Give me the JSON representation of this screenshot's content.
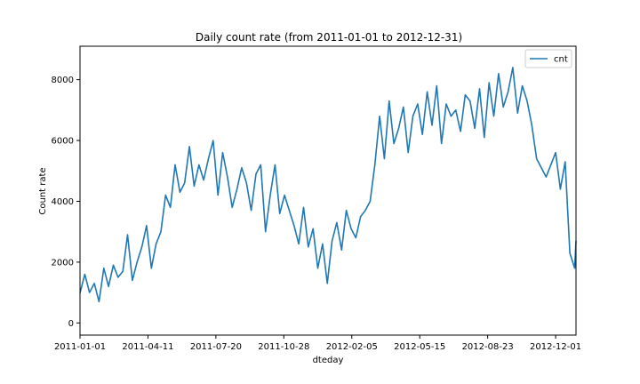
{
  "chart_data": {
    "type": "line",
    "title": "Daily count rate (from 2011-01-01 to 2012-12-31)",
    "xlabel": "dteday",
    "ylabel": "Count rate",
    "x_range": [
      "2011-01-01",
      "2012-12-31"
    ],
    "ylim": [
      -400,
      9100
    ],
    "x_ticks": [
      "2011-01-01",
      "2011-04-11",
      "2011-07-20",
      "2011-10-28",
      "2012-02-05",
      "2012-05-15",
      "2012-08-23",
      "2012-12-01"
    ],
    "y_ticks": [
      0,
      2000,
      4000,
      6000,
      8000
    ],
    "y_tick_labels": [
      "0",
      "2000",
      "4000",
      "6000",
      "8000"
    ],
    "grid": false,
    "legend_position": "top-right",
    "series": [
      {
        "name": "cnt",
        "color": "#1f77b4",
        "x": [
          "2011-01-01",
          "2011-01-08",
          "2011-01-15",
          "2011-01-22",
          "2011-01-29",
          "2011-02-05",
          "2011-02-12",
          "2011-02-19",
          "2011-02-26",
          "2011-03-05",
          "2011-03-12",
          "2011-03-19",
          "2011-03-26",
          "2011-04-02",
          "2011-04-09",
          "2011-04-16",
          "2011-04-23",
          "2011-04-30",
          "2011-05-07",
          "2011-05-14",
          "2011-05-21",
          "2011-05-28",
          "2011-06-04",
          "2011-06-11",
          "2011-06-18",
          "2011-06-25",
          "2011-07-02",
          "2011-07-09",
          "2011-07-16",
          "2011-07-23",
          "2011-07-30",
          "2011-08-06",
          "2011-08-13",
          "2011-08-20",
          "2011-08-27",
          "2011-09-03",
          "2011-09-10",
          "2011-09-17",
          "2011-09-24",
          "2011-10-01",
          "2011-10-08",
          "2011-10-15",
          "2011-10-22",
          "2011-10-29",
          "2011-11-05",
          "2011-11-12",
          "2011-11-19",
          "2011-11-26",
          "2011-12-03",
          "2011-12-10",
          "2011-12-17",
          "2011-12-24",
          "2011-12-31",
          "2012-01-07",
          "2012-01-14",
          "2012-01-21",
          "2012-01-28",
          "2012-02-04",
          "2012-02-11",
          "2012-02-18",
          "2012-02-25",
          "2012-03-03",
          "2012-03-10",
          "2012-03-17",
          "2012-03-24",
          "2012-03-31",
          "2012-04-07",
          "2012-04-14",
          "2012-04-21",
          "2012-04-28",
          "2012-05-05",
          "2012-05-12",
          "2012-05-19",
          "2012-05-26",
          "2012-06-02",
          "2012-06-09",
          "2012-06-16",
          "2012-06-23",
          "2012-06-30",
          "2012-07-07",
          "2012-07-14",
          "2012-07-21",
          "2012-07-28",
          "2012-08-04",
          "2012-08-11",
          "2012-08-18",
          "2012-08-25",
          "2012-09-01",
          "2012-09-08",
          "2012-09-15",
          "2012-09-22",
          "2012-09-29",
          "2012-10-06",
          "2012-10-13",
          "2012-10-20",
          "2012-10-27",
          "2012-11-03",
          "2012-11-10",
          "2012-11-17",
          "2012-11-24",
          "2012-12-01",
          "2012-12-08",
          "2012-12-15",
          "2012-12-22",
          "2012-12-29",
          "2012-12-31"
        ],
        "values": [
          985,
          1600,
          1000,
          1300,
          700,
          1800,
          1200,
          1900,
          1500,
          1700,
          2900,
          1400,
          2000,
          2500,
          3200,
          1800,
          2600,
          3000,
          4200,
          3800,
          5200,
          4300,
          4600,
          5800,
          4500,
          5200,
          4700,
          5400,
          6000,
          4200,
          5600,
          4800,
          3800,
          4400,
          5100,
          4600,
          3700,
          4900,
          5200,
          3000,
          4200,
          5200,
          3600,
          4200,
          3700,
          3200,
          2600,
          3800,
          2500,
          3100,
          1800,
          2600,
          1300,
          2700,
          3300,
          2400,
          3700,
          3100,
          2800,
          3500,
          3700,
          4000,
          5200,
          6800,
          5400,
          7300,
          5900,
          6400,
          7100,
          5600,
          6800,
          7200,
          6200,
          7600,
          6500,
          7800,
          5900,
          7200,
          6800,
          7000,
          6300,
          7500,
          7300,
          6400,
          7700,
          6100,
          7900,
          6800,
          8200,
          7100,
          7600,
          8400,
          6900,
          7800,
          7300,
          6500,
          5400,
          5100,
          4800,
          5200,
          5600,
          4400,
          5300,
          2300,
          1800,
          2700
        ]
      }
    ]
  }
}
